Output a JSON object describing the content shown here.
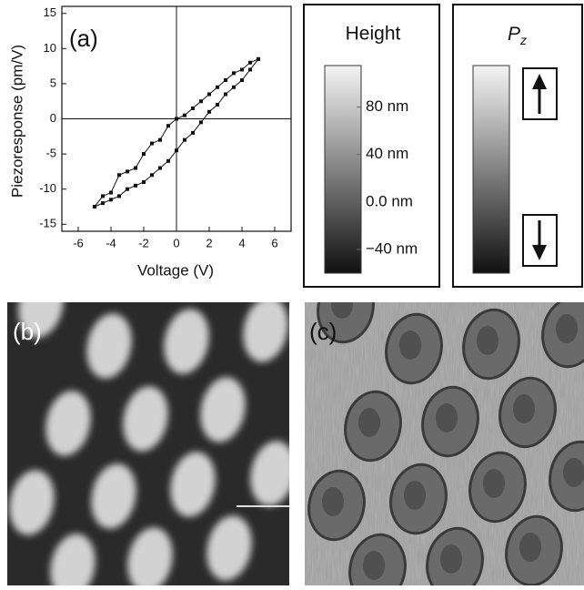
{
  "chart_data": {
    "type": "scatter",
    "panel_label": "(a)",
    "x_label": "Voltage (V)",
    "y_label": "Piezoresponse (pm/V)",
    "x": [
      -5,
      -4.5,
      -4,
      -3.5,
      -3,
      -2.5,
      -2,
      -1.5,
      -1,
      -0.5,
      0,
      0.5,
      1,
      1.5,
      2,
      2.5,
      3,
      3.5,
      4,
      4.5,
      5
    ],
    "series": [
      {
        "color": "#111111",
        "values": [
          -12.5,
          -11,
          -10.5,
          -8,
          -7.5,
          -7,
          -5,
          -3.5,
          -3,
          -1,
          0,
          0.5,
          1.5,
          2.5,
          3.5,
          4.5,
          5.5,
          6.5,
          7,
          8,
          8.5
        ]
      },
      {
        "color": "#111111",
        "values": [
          -12.5,
          -12,
          -11.5,
          -11,
          -10,
          -9.5,
          -9,
          -8,
          -7,
          -6,
          -4.5,
          -3,
          -2,
          -0.5,
          1,
          2,
          3.5,
          4.5,
          5.5,
          7,
          8.5
        ]
      }
    ],
    "xlim": [
      -7,
      7
    ],
    "xticks": [
      -6,
      -4,
      -2,
      0,
      2,
      4,
      6
    ],
    "ylim": [
      -16,
      16
    ],
    "yticks": [
      -15,
      -10,
      -5,
      0,
      5,
      10,
      15
    ]
  },
  "colorbars": [
    {
      "title": "Height",
      "ylim": [
        -60,
        115
      ],
      "yticks": [
        {
          "value": 80,
          "label": "80 nm"
        },
        {
          "value": 40,
          "label": "40 nm"
        },
        {
          "value": 0,
          "label": "0.0 nm"
        },
        {
          "value": -40,
          "label": "−40 nm"
        }
      ]
    },
    {
      "title": "P",
      "title_subscript": "z"
    }
  ],
  "images": [
    {
      "label": "(b)"
    },
    {
      "label": "(c)"
    }
  ]
}
